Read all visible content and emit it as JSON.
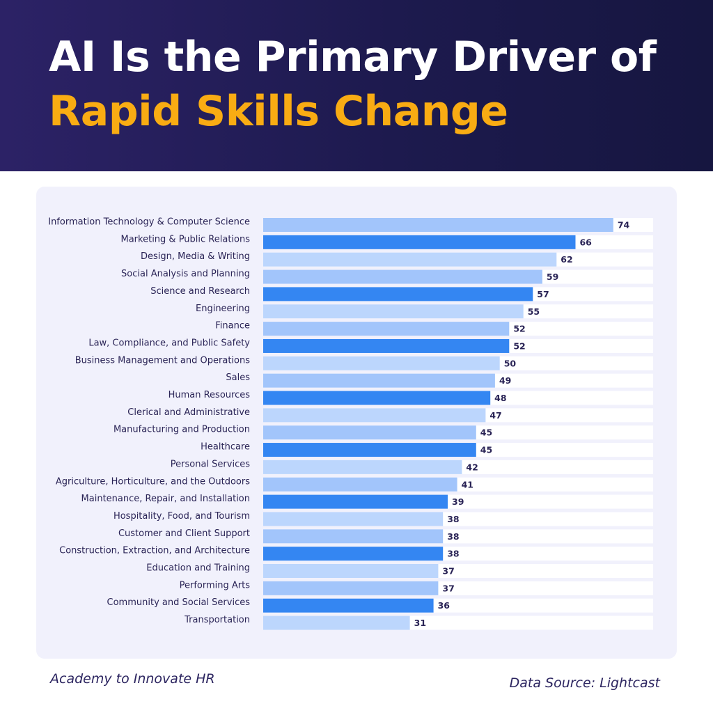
{
  "header": {
    "title_line1": "AI Is the Primary Driver of",
    "title_line2": "Rapid Skills Change"
  },
  "footer": {
    "left": "Academy to Innovate HR",
    "right": "Data Source: Lightcast"
  },
  "colors": {
    "header_bg": "#1d1a4e",
    "title_white": "#ffffff",
    "title_accent": "#f9ac13",
    "panel_bg": "#f1f1fc",
    "bar_light": "#bcd6fd",
    "bar_mid": "#a2c5fb",
    "bar_dark": "#3486f2",
    "text": "#2a2456"
  },
  "chart_data": {
    "type": "bar",
    "orientation": "horizontal",
    "categories": [
      "Information Technology & Computer Science",
      "Marketing & Public Relations",
      "Design, Media & Writing",
      "Social Analysis and Planning",
      "Science and Research",
      "Engineering",
      "Finance",
      "Law, Compliance, and Public Safety",
      "Business Management and Operations",
      "Sales",
      "Human Resources",
      "Clerical and Administrative",
      "Manufacturing and Production",
      "Healthcare",
      "Personal Services",
      "Agriculture, Horticulture, and the Outdoors",
      "Maintenance, Repair, and Installation",
      "Hospitality, Food, and Tourism",
      "Customer and Client Support",
      "Construction, Extraction, and Architecture",
      "Education and Training",
      "Performing Arts",
      "Community and Social Services",
      "Transportation"
    ],
    "values": [
      74,
      66,
      62,
      59,
      57,
      55,
      52,
      52,
      50,
      49,
      48,
      47,
      45,
      45,
      42,
      41,
      39,
      38,
      38,
      38,
      37,
      37,
      36,
      31
    ],
    "bar_color_pattern": [
      "mid",
      "dark",
      "light"
    ],
    "xlim": [
      0,
      78
    ],
    "grid": false,
    "legend": "none"
  }
}
